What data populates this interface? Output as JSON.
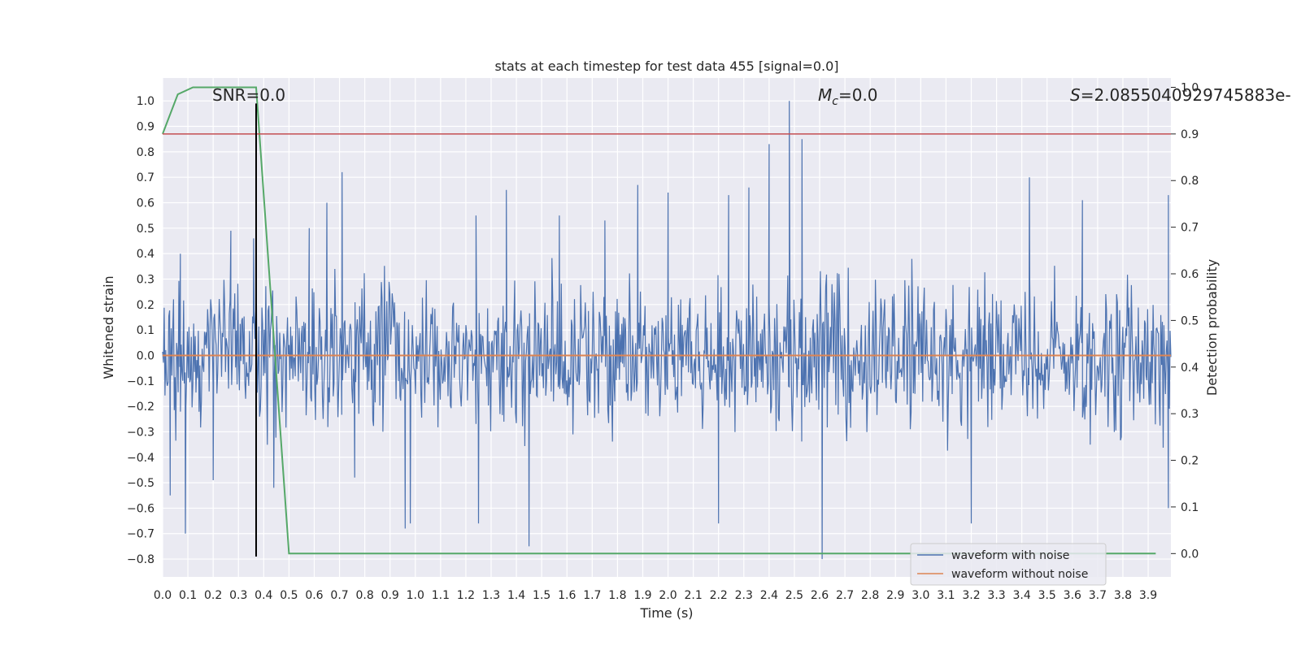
{
  "chart_data": {
    "type": "line",
    "title": "stats at each timestep for test data 455 [signal=0.0]",
    "xlabel": "Time (s)",
    "ylabel": "Whitened strain",
    "y2label": "Detection probability",
    "xlim": [
      0.0,
      3.99
    ],
    "ylim": [
      -0.87,
      1.09
    ],
    "y2lim": [
      -0.05,
      1.02
    ],
    "grid": true,
    "legend_position": "lower-right",
    "x_ticks": [
      "0.0",
      "0.1",
      "0.2",
      "0.3",
      "0.4",
      "0.5",
      "0.6",
      "0.7",
      "0.8",
      "0.9",
      "1.0",
      "1.1",
      "1.2",
      "1.3",
      "1.4",
      "1.5",
      "1.6",
      "1.7",
      "1.8",
      "1.9",
      "2.0",
      "2.1",
      "2.2",
      "2.3",
      "2.4",
      "2.5",
      "2.6",
      "2.7",
      "2.8",
      "2.9",
      "3.0",
      "3.1",
      "3.2",
      "3.3",
      "3.4",
      "3.5",
      "3.6",
      "3.7",
      "3.8",
      "3.9"
    ],
    "y_ticks": [
      "1.0",
      "0.9",
      "0.8",
      "0.7",
      "0.6",
      "0.5",
      "0.4",
      "0.3",
      "0.2",
      "0.1",
      "0.0",
      "−0.1",
      "−0.2",
      "−0.3",
      "−0.4",
      "−0.5",
      "−0.6",
      "−0.7",
      "−0.8"
    ],
    "y2_ticks": [
      "1.0",
      "0.9",
      "0.8",
      "0.7",
      "0.6",
      "0.5",
      "0.4",
      "0.3",
      "0.2",
      "0.1",
      "0.0"
    ],
    "annotations": {
      "snr": "SNR=0.0",
      "mc_symbol": "M",
      "mc_sub": "c",
      "mc_value": "=0.0",
      "s_symbol": "S",
      "s_value": "=2.0855040929745883e-"
    },
    "series": [
      {
        "name": "waveform with noise",
        "color": "#4c72b0",
        "axis": "left",
        "envelope": "dense noise between about −0.55 and 0.55, spikes up to 1.0 at t≈2.48 and down to −0.8 at t≈2.61",
        "peaks": [
          {
            "x": 0.03,
            "y": -0.55
          },
          {
            "x": 0.07,
            "y": 0.4
          },
          {
            "x": 0.09,
            "y": -0.7
          },
          {
            "x": 0.2,
            "y": -0.49
          },
          {
            "x": 0.27,
            "y": 0.49
          },
          {
            "x": 0.36,
            "y": 0.46
          },
          {
            "x": 0.44,
            "y": -0.52
          },
          {
            "x": 0.58,
            "y": 0.5
          },
          {
            "x": 0.65,
            "y": 0.6
          },
          {
            "x": 0.71,
            "y": 0.72
          },
          {
            "x": 0.76,
            "y": -0.48
          },
          {
            "x": 0.96,
            "y": -0.68
          },
          {
            "x": 0.98,
            "y": -0.66
          },
          {
            "x": 1.24,
            "y": 0.55
          },
          {
            "x": 1.25,
            "y": -0.66
          },
          {
            "x": 1.36,
            "y": 0.65
          },
          {
            "x": 1.45,
            "y": -0.75
          },
          {
            "x": 1.57,
            "y": 0.55
          },
          {
            "x": 1.75,
            "y": 0.53
          },
          {
            "x": 1.88,
            "y": 0.67
          },
          {
            "x": 2.0,
            "y": 0.64
          },
          {
            "x": 2.2,
            "y": -0.66
          },
          {
            "x": 2.24,
            "y": 0.63
          },
          {
            "x": 2.32,
            "y": 0.66
          },
          {
            "x": 2.4,
            "y": 0.83
          },
          {
            "x": 2.48,
            "y": 1.0
          },
          {
            "x": 2.53,
            "y": 0.85
          },
          {
            "x": 2.61,
            "y": -0.8
          },
          {
            "x": 3.2,
            "y": -0.66
          },
          {
            "x": 3.43,
            "y": 0.7
          },
          {
            "x": 3.64,
            "y": 0.61
          },
          {
            "x": 3.98,
            "y": -0.6
          },
          {
            "x": 3.98,
            "y": 0.63
          }
        ]
      },
      {
        "name": "waveform without noise",
        "color": "#dd8452",
        "axis": "left",
        "x": [
          0.0,
          3.99
        ],
        "y": [
          0.0,
          0.0
        ]
      },
      {
        "color": "#55a868",
        "axis": "right",
        "x": [
          0.0,
          0.06,
          0.12,
          0.25,
          0.37,
          0.5,
          0.6,
          1.0,
          2.0,
          3.0,
          3.93
        ],
        "y": [
          0.9,
          0.985,
          1.0,
          1.0,
          1.0,
          0.0,
          0.0,
          0.0,
          0.0,
          0.0,
          0.0
        ]
      },
      {
        "color": "#c44e52",
        "axis": "right",
        "x": [
          0.0,
          3.99
        ],
        "y": [
          0.9,
          0.9
        ]
      },
      {
        "color": "#000000",
        "axis": "left",
        "type": "vline",
        "x": 0.37,
        "y": [
          -0.79,
          0.99
        ]
      }
    ]
  }
}
